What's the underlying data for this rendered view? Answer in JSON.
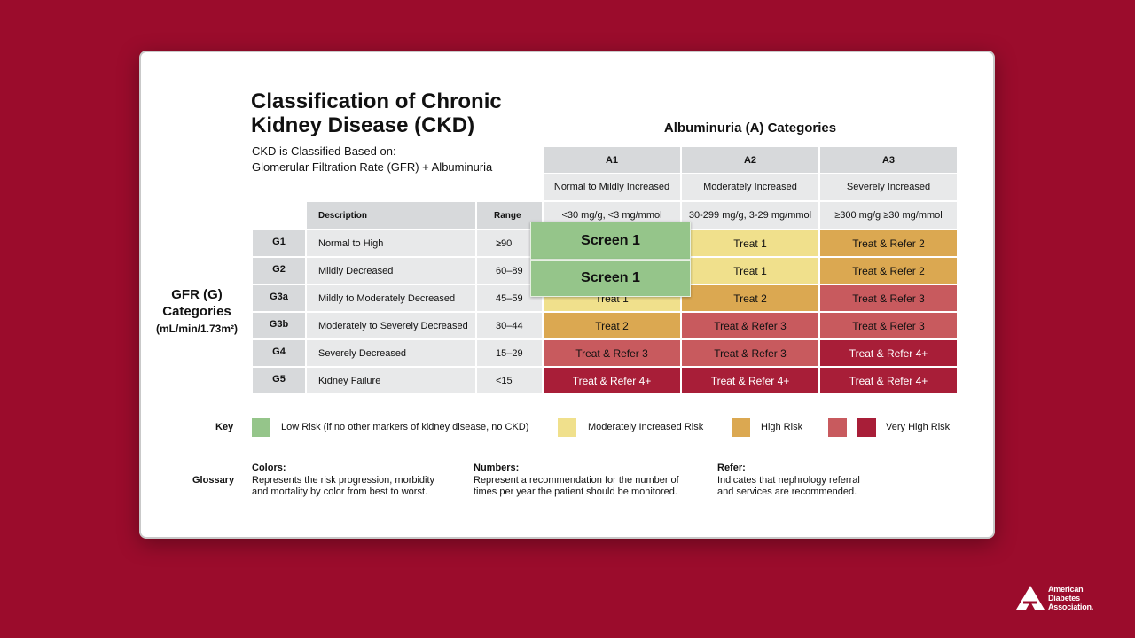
{
  "header": {
    "title_lines": [
      "Classification of Chronic",
      "Kidney Disease (CKD)"
    ],
    "subtitle_lines": [
      "CKD is Classified Based on:",
      "Glomerular Filtration Rate (GFR) + Albuminuria"
    ]
  },
  "albuminuria_title": "Albuminuria (A) Categories",
  "gfr_title_lines": [
    "GFR (G)",
    "Categories",
    "(mL/min/1.73m²)"
  ],
  "table": {
    "description_header": "Description",
    "range_header": "Range",
    "columns": [
      {
        "code": "A1",
        "description": "Normal to Mildly Increased",
        "criteria": "<30 mg/g, <3 mg/mmol"
      },
      {
        "code": "A2",
        "description": "Moderately Increased",
        "criteria": "30-299 mg/g, 3-29 mg/mmol"
      },
      {
        "code": "A3",
        "description": "Severely Increased",
        "criteria": "≥300 mg/g ≥30 mg/mmol"
      }
    ],
    "rows": [
      {
        "code": "G1",
        "description": "Normal to High",
        "range": "≥90",
        "cells": [
          {
            "color": "#95c58a"
          },
          {
            "text": "Treat 1",
            "color": "#f0e08c"
          },
          {
            "text": "Treat & Refer 2",
            "color": "#dba851"
          }
        ]
      },
      {
        "code": "G2",
        "description": "Mildly Decreased",
        "range": "60–89",
        "cells": [
          {
            "color": "#95c58a"
          },
          {
            "text": "Treat 1",
            "color": "#f0e08c"
          },
          {
            "text": "Treat & Refer 2",
            "color": "#dba851"
          }
        ]
      },
      {
        "code": "G3a",
        "description": "Mildly to Moderately Decreased",
        "range": "45–59",
        "cells": [
          {
            "text": "Treat 1",
            "color": "#f0e08c"
          },
          {
            "text": "Treat 2",
            "color": "#dba851"
          },
          {
            "text": "Treat & Refer 3",
            "color": "#c85a5e"
          }
        ]
      },
      {
        "code": "G3b",
        "description": "Moderately to Severely Decreased",
        "range": "30–44",
        "cells": [
          {
            "text": "Treat 2",
            "color": "#dba851"
          },
          {
            "text": "Treat & Refer 3",
            "color": "#c85a5e"
          },
          {
            "text": "Treat & Refer 3",
            "color": "#c85a5e"
          }
        ]
      },
      {
        "code": "G4",
        "description": "Severely Decreased",
        "range": "15–29",
        "cells": [
          {
            "text": "Treat & Refer 3",
            "color": "#c85a5e"
          },
          {
            "text": "Treat & Refer 3",
            "color": "#c85a5e"
          },
          {
            "text": "Treat & Refer 4+",
            "color": "#a81e38"
          }
        ]
      },
      {
        "code": "G5",
        "description": "Kidney Failure",
        "range": "<15",
        "cells": [
          {
            "text": "Treat & Refer 4+",
            "color": "#a81e38"
          },
          {
            "text": "Treat & Refer 4+",
            "color": "#a81e38"
          },
          {
            "text": "Treat & Refer 4+",
            "color": "#a81e38"
          }
        ]
      }
    ]
  },
  "overlays": [
    {
      "text": "Screen 1"
    },
    {
      "text": "Screen 1"
    }
  ],
  "key": {
    "label": "Key",
    "items": [
      {
        "text": "Low Risk (if no other markers of kidney disease, no CKD)",
        "colors": [
          "#95c58a"
        ]
      },
      {
        "text": "Moderately Increased Risk",
        "colors": [
          "#f0e08c"
        ]
      },
      {
        "text": "High Risk",
        "colors": [
          "#dba851"
        ]
      },
      {
        "text": "Very High Risk",
        "colors": [
          "#c85a5e",
          "#a81e38"
        ]
      }
    ]
  },
  "glossary": {
    "label": "Glossary",
    "items": [
      {
        "title": "Colors:",
        "lines": [
          "Represents the risk progression, morbidity",
          "and mortality by color from best to worst."
        ]
      },
      {
        "title": "Numbers:",
        "lines": [
          "Represent a recommendation for the number of",
          "times per year the patient should be monitored."
        ]
      },
      {
        "title": "Refer:",
        "lines": [
          "Indicates that nephrology referral",
          "and services are recommended."
        ]
      }
    ]
  },
  "logo_lines": [
    "American",
    "Diabetes",
    "Association."
  ]
}
